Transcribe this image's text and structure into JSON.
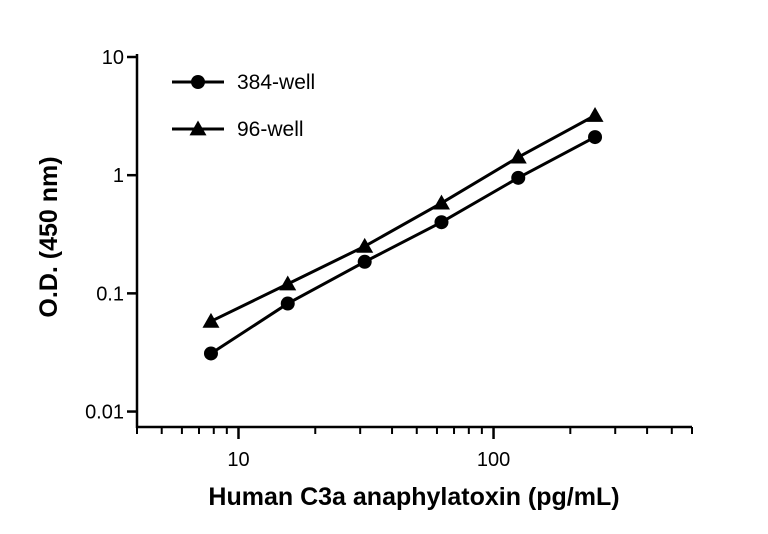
{
  "chart_data": {
    "type": "line",
    "title": "",
    "xlabel": "Human C3a anaphylatoxin (pg/mL)",
    "ylabel": "O.D. (450 nm)",
    "x_scale": "log",
    "y_scale": "log",
    "xlim": [
      4,
      600
    ],
    "ylim": [
      0.008,
      10
    ],
    "x_ticks": [
      10,
      100
    ],
    "x_tick_labels": [
      "10",
      "100"
    ],
    "y_ticks": [
      0.01,
      0.1,
      1,
      10
    ],
    "y_tick_labels": [
      "0.01",
      "0.1",
      "1",
      "10"
    ],
    "grid": false,
    "legend_position": "top-left",
    "x": [
      7.8,
      15.6,
      31.25,
      62.5,
      125,
      250
    ],
    "series": [
      {
        "name": "384-well",
        "marker": "circle",
        "values": [
          0.031,
          0.082,
          0.185,
          0.4,
          0.95,
          2.1
        ]
      },
      {
        "name": "96-well",
        "marker": "triangle",
        "values": [
          0.058,
          0.12,
          0.25,
          0.58,
          1.42,
          3.2
        ]
      }
    ]
  }
}
